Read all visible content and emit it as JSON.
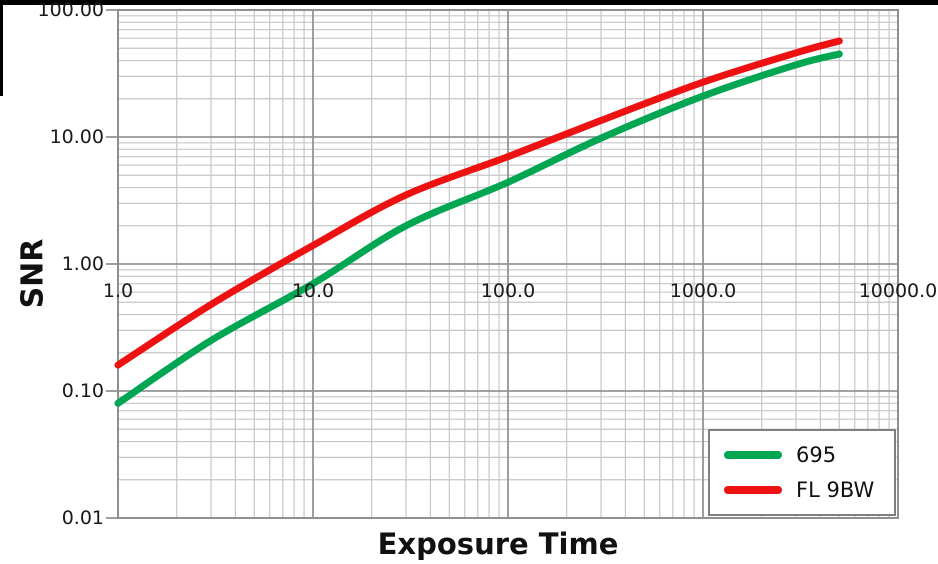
{
  "figure": {
    "background": "#ffffff",
    "border_color": "#000000"
  },
  "axes": {
    "y_label": "SNR",
    "x_label": "Exposure Time",
    "y_tick_labels": [
      "100.00",
      "10.00",
      "1.00",
      "0.10",
      "0.01"
    ],
    "y_tick_values": [
      100,
      10,
      1,
      0.1,
      0.01
    ],
    "x_tick_labels": [
      "1.0",
      "10.0",
      "100.0",
      "1000.0",
      "10000.0"
    ],
    "x_tick_values": [
      1,
      10,
      100,
      1000,
      10000
    ],
    "grid_minor_color": "#c6c6c6",
    "grid_major_color": "#949494",
    "plot_border_color": "#8f8f8f"
  },
  "legend": {
    "items": [
      {
        "label": "695",
        "color": "#00a651"
      },
      {
        "label": "FL 9BW",
        "color": "#ee1111"
      }
    ]
  },
  "chart_data": {
    "type": "line",
    "xscale": "log",
    "yscale": "log",
    "xlim": [
      1,
      10000
    ],
    "ylim": [
      0.01,
      100
    ],
    "grid": true,
    "legend_position": "bottom-right",
    "title": "",
    "xlabel": "Exposure Time",
    "ylabel": "SNR",
    "x": [
      1,
      3,
      10,
      30,
      100,
      300,
      1000,
      3000,
      5000
    ],
    "series": [
      {
        "name": "695",
        "color": "#00a651",
        "values": [
          0.08,
          0.25,
          0.7,
          2.0,
          4.4,
          9.8,
          21,
          37,
          45
        ]
      },
      {
        "name": "FL 9BW",
        "color": "#ee1111",
        "values": [
          0.16,
          0.48,
          1.4,
          3.5,
          7.0,
          13.5,
          27,
          46,
          57
        ]
      }
    ]
  }
}
